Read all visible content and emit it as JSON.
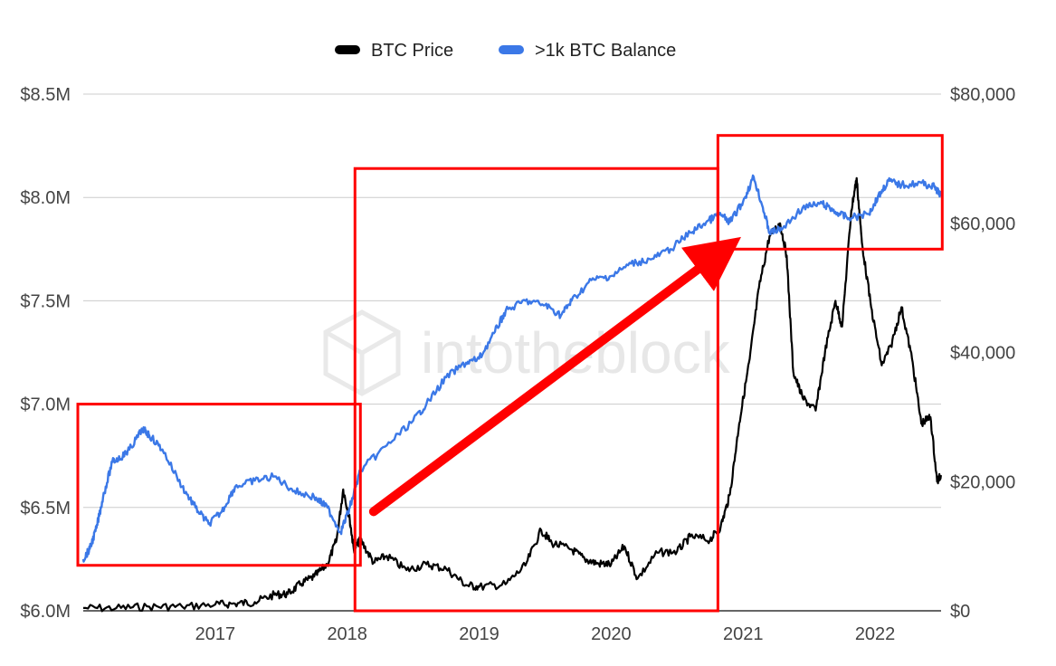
{
  "watermark": "intotheblock",
  "chart_data": {
    "type": "line",
    "legend_position": "top",
    "grid": true,
    "x_ticks": [
      "2017",
      "2018",
      "2019",
      "2020",
      "2021",
      "2022"
    ],
    "x_tick_values": [
      2017,
      2018,
      2019,
      2020,
      2021,
      2022
    ],
    "x_range": [
      2016.0,
      2022.5
    ],
    "y_left": {
      "ticks": [
        "$6.0M",
        "$6.5M",
        "$7.0M",
        "$7.5M",
        "$8.0M",
        "$8.5M"
      ],
      "tick_values": [
        6.0,
        6.5,
        7.0,
        7.5,
        8.0,
        8.5
      ],
      "range": [
        6.0,
        8.5
      ]
    },
    "y_right": {
      "ticks": [
        "$0",
        "$20,000",
        "$40,000",
        "$60,000",
        "$80,000"
      ],
      "tick_values": [
        0,
        20000,
        40000,
        60000,
        80000
      ],
      "range": [
        0,
        80000
      ]
    },
    "series": [
      {
        "name": "BTC Price",
        "axis": "right",
        "color": "#000000",
        "points": [
          [
            2016.0,
            430
          ],
          [
            2016.25,
            420
          ],
          [
            2016.5,
            650
          ],
          [
            2016.75,
            640
          ],
          [
            2017.0,
            970
          ],
          [
            2017.15,
            1100
          ],
          [
            2017.3,
            1350
          ],
          [
            2017.45,
            2500
          ],
          [
            2017.55,
            2600
          ],
          [
            2017.65,
            4200
          ],
          [
            2017.75,
            5300
          ],
          [
            2017.85,
            7200
          ],
          [
            2017.92,
            11000
          ],
          [
            2017.97,
            18800
          ],
          [
            2018.02,
            14000
          ],
          [
            2018.05,
            9500
          ],
          [
            2018.1,
            11000
          ],
          [
            2018.2,
            7500
          ],
          [
            2018.3,
            8500
          ],
          [
            2018.45,
            6300
          ],
          [
            2018.6,
            7200
          ],
          [
            2018.75,
            6500
          ],
          [
            2018.9,
            4000
          ],
          [
            2019.0,
            3700
          ],
          [
            2019.2,
            4100
          ],
          [
            2019.35,
            7000
          ],
          [
            2019.47,
            12500
          ],
          [
            2019.55,
            10500
          ],
          [
            2019.7,
            9500
          ],
          [
            2019.8,
            8000
          ],
          [
            2019.9,
            7300
          ],
          [
            2020.0,
            7200
          ],
          [
            2020.1,
            10000
          ],
          [
            2020.2,
            5000
          ],
          [
            2020.35,
            9000
          ],
          [
            2020.5,
            9200
          ],
          [
            2020.6,
            11500
          ],
          [
            2020.75,
            11000
          ],
          [
            2020.83,
            13000
          ],
          [
            2020.9,
            18000
          ],
          [
            2020.97,
            29000
          ],
          [
            2021.05,
            39000
          ],
          [
            2021.12,
            50000
          ],
          [
            2021.2,
            58000
          ],
          [
            2021.28,
            60000
          ],
          [
            2021.33,
            55000
          ],
          [
            2021.38,
            37000
          ],
          [
            2021.45,
            33000
          ],
          [
            2021.55,
            31000
          ],
          [
            2021.62,
            40000
          ],
          [
            2021.7,
            48000
          ],
          [
            2021.75,
            44000
          ],
          [
            2021.82,
            62000
          ],
          [
            2021.86,
            67000
          ],
          [
            2021.9,
            57000
          ],
          [
            2021.97,
            47000
          ],
          [
            2022.05,
            38000
          ],
          [
            2022.12,
            41000
          ],
          [
            2022.2,
            47000
          ],
          [
            2022.28,
            39000
          ],
          [
            2022.35,
            29000
          ],
          [
            2022.42,
            30000
          ],
          [
            2022.47,
            20000
          ],
          [
            2022.5,
            21000
          ]
        ]
      },
      {
        "name": ">1k BTC Balance",
        "axis": "left",
        "color": "#3b78e7",
        "points": [
          [
            2016.0,
            6.25
          ],
          [
            2016.05,
            6.3
          ],
          [
            2016.1,
            6.4
          ],
          [
            2016.15,
            6.55
          ],
          [
            2016.22,
            6.72
          ],
          [
            2016.3,
            6.75
          ],
          [
            2016.35,
            6.78
          ],
          [
            2016.45,
            6.88
          ],
          [
            2016.5,
            6.85
          ],
          [
            2016.6,
            6.78
          ],
          [
            2016.75,
            6.6
          ],
          [
            2016.85,
            6.5
          ],
          [
            2016.95,
            6.42
          ],
          [
            2017.05,
            6.48
          ],
          [
            2017.15,
            6.6
          ],
          [
            2017.3,
            6.63
          ],
          [
            2017.45,
            6.65
          ],
          [
            2017.6,
            6.58
          ],
          [
            2017.75,
            6.55
          ],
          [
            2017.85,
            6.5
          ],
          [
            2017.95,
            6.38
          ],
          [
            2018.02,
            6.5
          ],
          [
            2018.1,
            6.68
          ],
          [
            2018.3,
            6.8
          ],
          [
            2018.5,
            6.92
          ],
          [
            2018.6,
            7.0
          ],
          [
            2018.75,
            7.13
          ],
          [
            2018.9,
            7.2
          ],
          [
            2019.0,
            7.22
          ],
          [
            2019.12,
            7.35
          ],
          [
            2019.2,
            7.45
          ],
          [
            2019.35,
            7.5
          ],
          [
            2019.5,
            7.48
          ],
          [
            2019.62,
            7.43
          ],
          [
            2019.7,
            7.5
          ],
          [
            2019.85,
            7.6
          ],
          [
            2020.0,
            7.62
          ],
          [
            2020.15,
            7.68
          ],
          [
            2020.3,
            7.7
          ],
          [
            2020.45,
            7.75
          ],
          [
            2020.6,
            7.83
          ],
          [
            2020.72,
            7.88
          ],
          [
            2020.82,
            7.92
          ],
          [
            2020.9,
            7.88
          ],
          [
            2021.0,
            7.98
          ],
          [
            2021.08,
            8.1
          ],
          [
            2021.15,
            7.95
          ],
          [
            2021.2,
            7.83
          ],
          [
            2021.3,
            7.85
          ],
          [
            2021.45,
            7.95
          ],
          [
            2021.6,
            7.97
          ],
          [
            2021.7,
            7.93
          ],
          [
            2021.8,
            7.9
          ],
          [
            2021.95,
            7.92
          ],
          [
            2022.02,
            8.0
          ],
          [
            2022.1,
            8.08
          ],
          [
            2022.2,
            8.06
          ],
          [
            2022.35,
            8.07
          ],
          [
            2022.45,
            8.05
          ],
          [
            2022.5,
            8.01
          ]
        ]
      }
    ],
    "annotations": {
      "boxes": [
        {
          "x": [
            2016.0,
            2018.1
          ],
          "y_left": [
            6.22,
            7.0
          ]
        },
        {
          "x": [
            2018.1,
            2020.85
          ],
          "y_left": [
            6.0,
            8.14
          ]
        },
        {
          "x": [
            2020.85,
            2022.55
          ],
          "y_left": [
            7.75,
            8.3
          ]
        }
      ],
      "arrow": {
        "from": [
          2018.2,
          6.48
        ],
        "to": [
          2020.82,
          7.73
        ]
      },
      "color": "#ff0000"
    }
  }
}
